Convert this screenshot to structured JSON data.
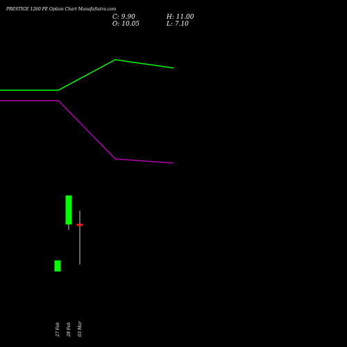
{
  "header": {
    "title": "PRESTIGE 1260  PE Option  Chart MunafaSutra.com",
    "close": "C: 9.90",
    "high": "H: 11.00",
    "open": "O: 10.05",
    "low": "L: 7.10"
  },
  "colors": {
    "background": "#000000",
    "bullish": "#00ff00",
    "bearish": "#ff2020",
    "line_upper": "#00ff00",
    "line_lower": "#b000b0",
    "text": "#ffffff"
  },
  "chart_data": {
    "type": "candlestick",
    "categories": [
      "27 Feb",
      "28 Feb",
      "03 Mar"
    ],
    "candles": [
      {
        "date": "27 Feb",
        "open": 7.4,
        "high": 7.4,
        "low": 6.6,
        "close": 6.6,
        "color": "bullish"
      },
      {
        "date": "28 Feb",
        "open": 10.0,
        "high": 12.0,
        "low": 9.6,
        "close": 12.1,
        "color": "bullish"
      },
      {
        "date": "03 Mar",
        "open": 10.05,
        "high": 11.0,
        "low": 7.1,
        "close": 9.9,
        "color": "bearish"
      }
    ],
    "overlay_lines": [
      {
        "color": "#00ff00",
        "points": [
          [
            0,
            130
          ],
          [
            84,
            130
          ],
          [
            166,
            86
          ],
          [
            250,
            98
          ]
        ]
      },
      {
        "color": "#b000b0",
        "points": [
          [
            0,
            145
          ],
          [
            84,
            145
          ],
          [
            166,
            229
          ],
          [
            250,
            235
          ]
        ]
      }
    ],
    "ylim": [
      4.3,
      16.7
    ]
  }
}
